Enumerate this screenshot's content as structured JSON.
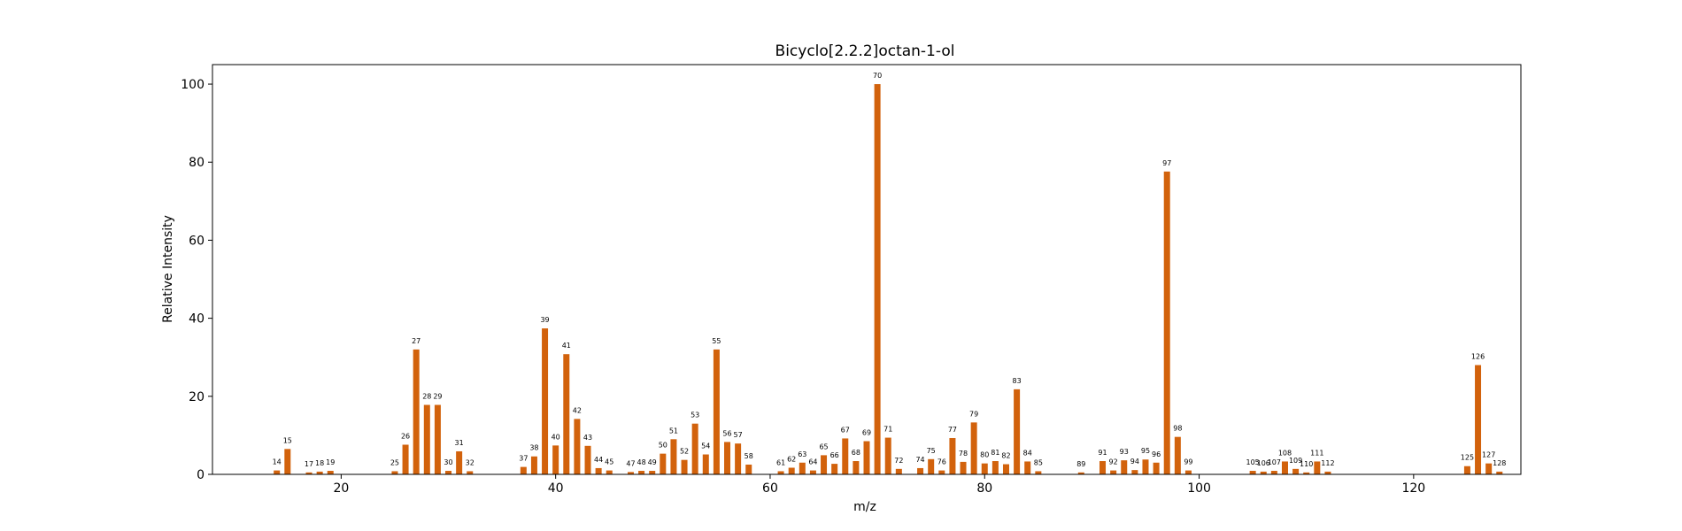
{
  "chart_data": {
    "type": "bar",
    "title": "Bicyclo[2.2.2]octan-1-ol",
    "xlabel": "m/z",
    "ylabel": "Relative Intensity",
    "xlim": [
      8,
      130
    ],
    "ylim": [
      0,
      105
    ],
    "xticks": [
      20,
      40,
      60,
      80,
      100,
      120
    ],
    "yticks": [
      0,
      20,
      40,
      60,
      80,
      100
    ],
    "bar_color": "#d2620c",
    "grid": false,
    "points": [
      {
        "mz": 14,
        "intensity": 1.0,
        "label": "14"
      },
      {
        "mz": 15,
        "intensity": 6.5,
        "label": "15"
      },
      {
        "mz": 17,
        "intensity": 0.5,
        "label": "17"
      },
      {
        "mz": 18,
        "intensity": 0.7,
        "label": "18"
      },
      {
        "mz": 19,
        "intensity": 0.9,
        "label": "19"
      },
      {
        "mz": 25,
        "intensity": 0.8,
        "label": "25"
      },
      {
        "mz": 26,
        "intensity": 7.6,
        "label": "26"
      },
      {
        "mz": 27,
        "intensity": 32.0,
        "label": "27"
      },
      {
        "mz": 28,
        "intensity": 17.8,
        "label": "28"
      },
      {
        "mz": 29,
        "intensity": 17.8,
        "label": "29"
      },
      {
        "mz": 30,
        "intensity": 0.9,
        "label": "30"
      },
      {
        "mz": 31,
        "intensity": 5.9,
        "label": "31"
      },
      {
        "mz": 32,
        "intensity": 0.8,
        "label": "32"
      },
      {
        "mz": 37,
        "intensity": 1.9,
        "label": "37"
      },
      {
        "mz": 38,
        "intensity": 4.6,
        "label": "38"
      },
      {
        "mz": 39,
        "intensity": 37.4,
        "label": "39"
      },
      {
        "mz": 40,
        "intensity": 7.4,
        "label": "40"
      },
      {
        "mz": 41,
        "intensity": 30.8,
        "label": "41"
      },
      {
        "mz": 42,
        "intensity": 14.2,
        "label": "42"
      },
      {
        "mz": 43,
        "intensity": 7.3,
        "label": "43"
      },
      {
        "mz": 44,
        "intensity": 1.6,
        "label": "44"
      },
      {
        "mz": 45,
        "intensity": 1.0,
        "label": "45"
      },
      {
        "mz": 47,
        "intensity": 0.6,
        "label": "47"
      },
      {
        "mz": 48,
        "intensity": 0.9,
        "label": "48"
      },
      {
        "mz": 49,
        "intensity": 0.9,
        "label": "49"
      },
      {
        "mz": 50,
        "intensity": 5.3,
        "label": "50"
      },
      {
        "mz": 51,
        "intensity": 9.0,
        "label": "51"
      },
      {
        "mz": 52,
        "intensity": 3.7,
        "label": "52"
      },
      {
        "mz": 53,
        "intensity": 13.0,
        "label": "53"
      },
      {
        "mz": 54,
        "intensity": 5.1,
        "label": "54"
      },
      {
        "mz": 55,
        "intensity": 32.0,
        "label": "55"
      },
      {
        "mz": 56,
        "intensity": 8.3,
        "label": "56"
      },
      {
        "mz": 57,
        "intensity": 7.9,
        "label": "57"
      },
      {
        "mz": 58,
        "intensity": 2.5,
        "label": "58"
      },
      {
        "mz": 61,
        "intensity": 0.8,
        "label": "61"
      },
      {
        "mz": 62,
        "intensity": 1.7,
        "label": "62"
      },
      {
        "mz": 63,
        "intensity": 3.0,
        "label": "63"
      },
      {
        "mz": 64,
        "intensity": 1.0,
        "label": "64"
      },
      {
        "mz": 65,
        "intensity": 4.9,
        "label": "65"
      },
      {
        "mz": 66,
        "intensity": 2.7,
        "label": "66"
      },
      {
        "mz": 67,
        "intensity": 9.2,
        "label": "67"
      },
      {
        "mz": 68,
        "intensity": 3.4,
        "label": "68"
      },
      {
        "mz": 69,
        "intensity": 8.5,
        "label": "69"
      },
      {
        "mz": 70,
        "intensity": 100.0,
        "label": "70"
      },
      {
        "mz": 71,
        "intensity": 9.4,
        "label": "71"
      },
      {
        "mz": 72,
        "intensity": 1.4,
        "label": "72"
      },
      {
        "mz": 74,
        "intensity": 1.6,
        "label": "74"
      },
      {
        "mz": 75,
        "intensity": 3.9,
        "label": "75"
      },
      {
        "mz": 76,
        "intensity": 1.0,
        "label": "76"
      },
      {
        "mz": 77,
        "intensity": 9.3,
        "label": "77"
      },
      {
        "mz": 78,
        "intensity": 3.2,
        "label": "78"
      },
      {
        "mz": 79,
        "intensity": 13.3,
        "label": "79"
      },
      {
        "mz": 80,
        "intensity": 2.8,
        "label": "80"
      },
      {
        "mz": 81,
        "intensity": 3.4,
        "label": "81"
      },
      {
        "mz": 82,
        "intensity": 2.6,
        "label": "82"
      },
      {
        "mz": 83,
        "intensity": 21.8,
        "label": "83"
      },
      {
        "mz": 84,
        "intensity": 3.3,
        "label": "84"
      },
      {
        "mz": 85,
        "intensity": 0.8,
        "label": "85"
      },
      {
        "mz": 89,
        "intensity": 0.5,
        "label": "89"
      },
      {
        "mz": 91,
        "intensity": 3.4,
        "label": "91"
      },
      {
        "mz": 92,
        "intensity": 1.0,
        "label": "92"
      },
      {
        "mz": 93,
        "intensity": 3.6,
        "label": "93"
      },
      {
        "mz": 94,
        "intensity": 1.1,
        "label": "94"
      },
      {
        "mz": 95,
        "intensity": 3.8,
        "label": "95"
      },
      {
        "mz": 96,
        "intensity": 3.0,
        "label": "96"
      },
      {
        "mz": 97,
        "intensity": 77.6,
        "label": "97"
      },
      {
        "mz": 98,
        "intensity": 9.6,
        "label": "98"
      },
      {
        "mz": 99,
        "intensity": 1.0,
        "label": "99"
      },
      {
        "mz": 105,
        "intensity": 0.9,
        "label": "105"
      },
      {
        "mz": 106,
        "intensity": 0.7,
        "label": "106"
      },
      {
        "mz": 107,
        "intensity": 0.9,
        "label": "107"
      },
      {
        "mz": 108,
        "intensity": 3.3,
        "label": "108"
      },
      {
        "mz": 109,
        "intensity": 1.4,
        "label": "109"
      },
      {
        "mz": 110,
        "intensity": 0.5,
        "label": "110"
      },
      {
        "mz": 111,
        "intensity": 3.3,
        "label": "111"
      },
      {
        "mz": 112,
        "intensity": 0.7,
        "label": "112"
      },
      {
        "mz": 125,
        "intensity": 2.1,
        "label": "125"
      },
      {
        "mz": 126,
        "intensity": 28.0,
        "label": "126"
      },
      {
        "mz": 127,
        "intensity": 2.8,
        "label": "127"
      },
      {
        "mz": 128,
        "intensity": 0.7,
        "label": "128"
      }
    ]
  }
}
